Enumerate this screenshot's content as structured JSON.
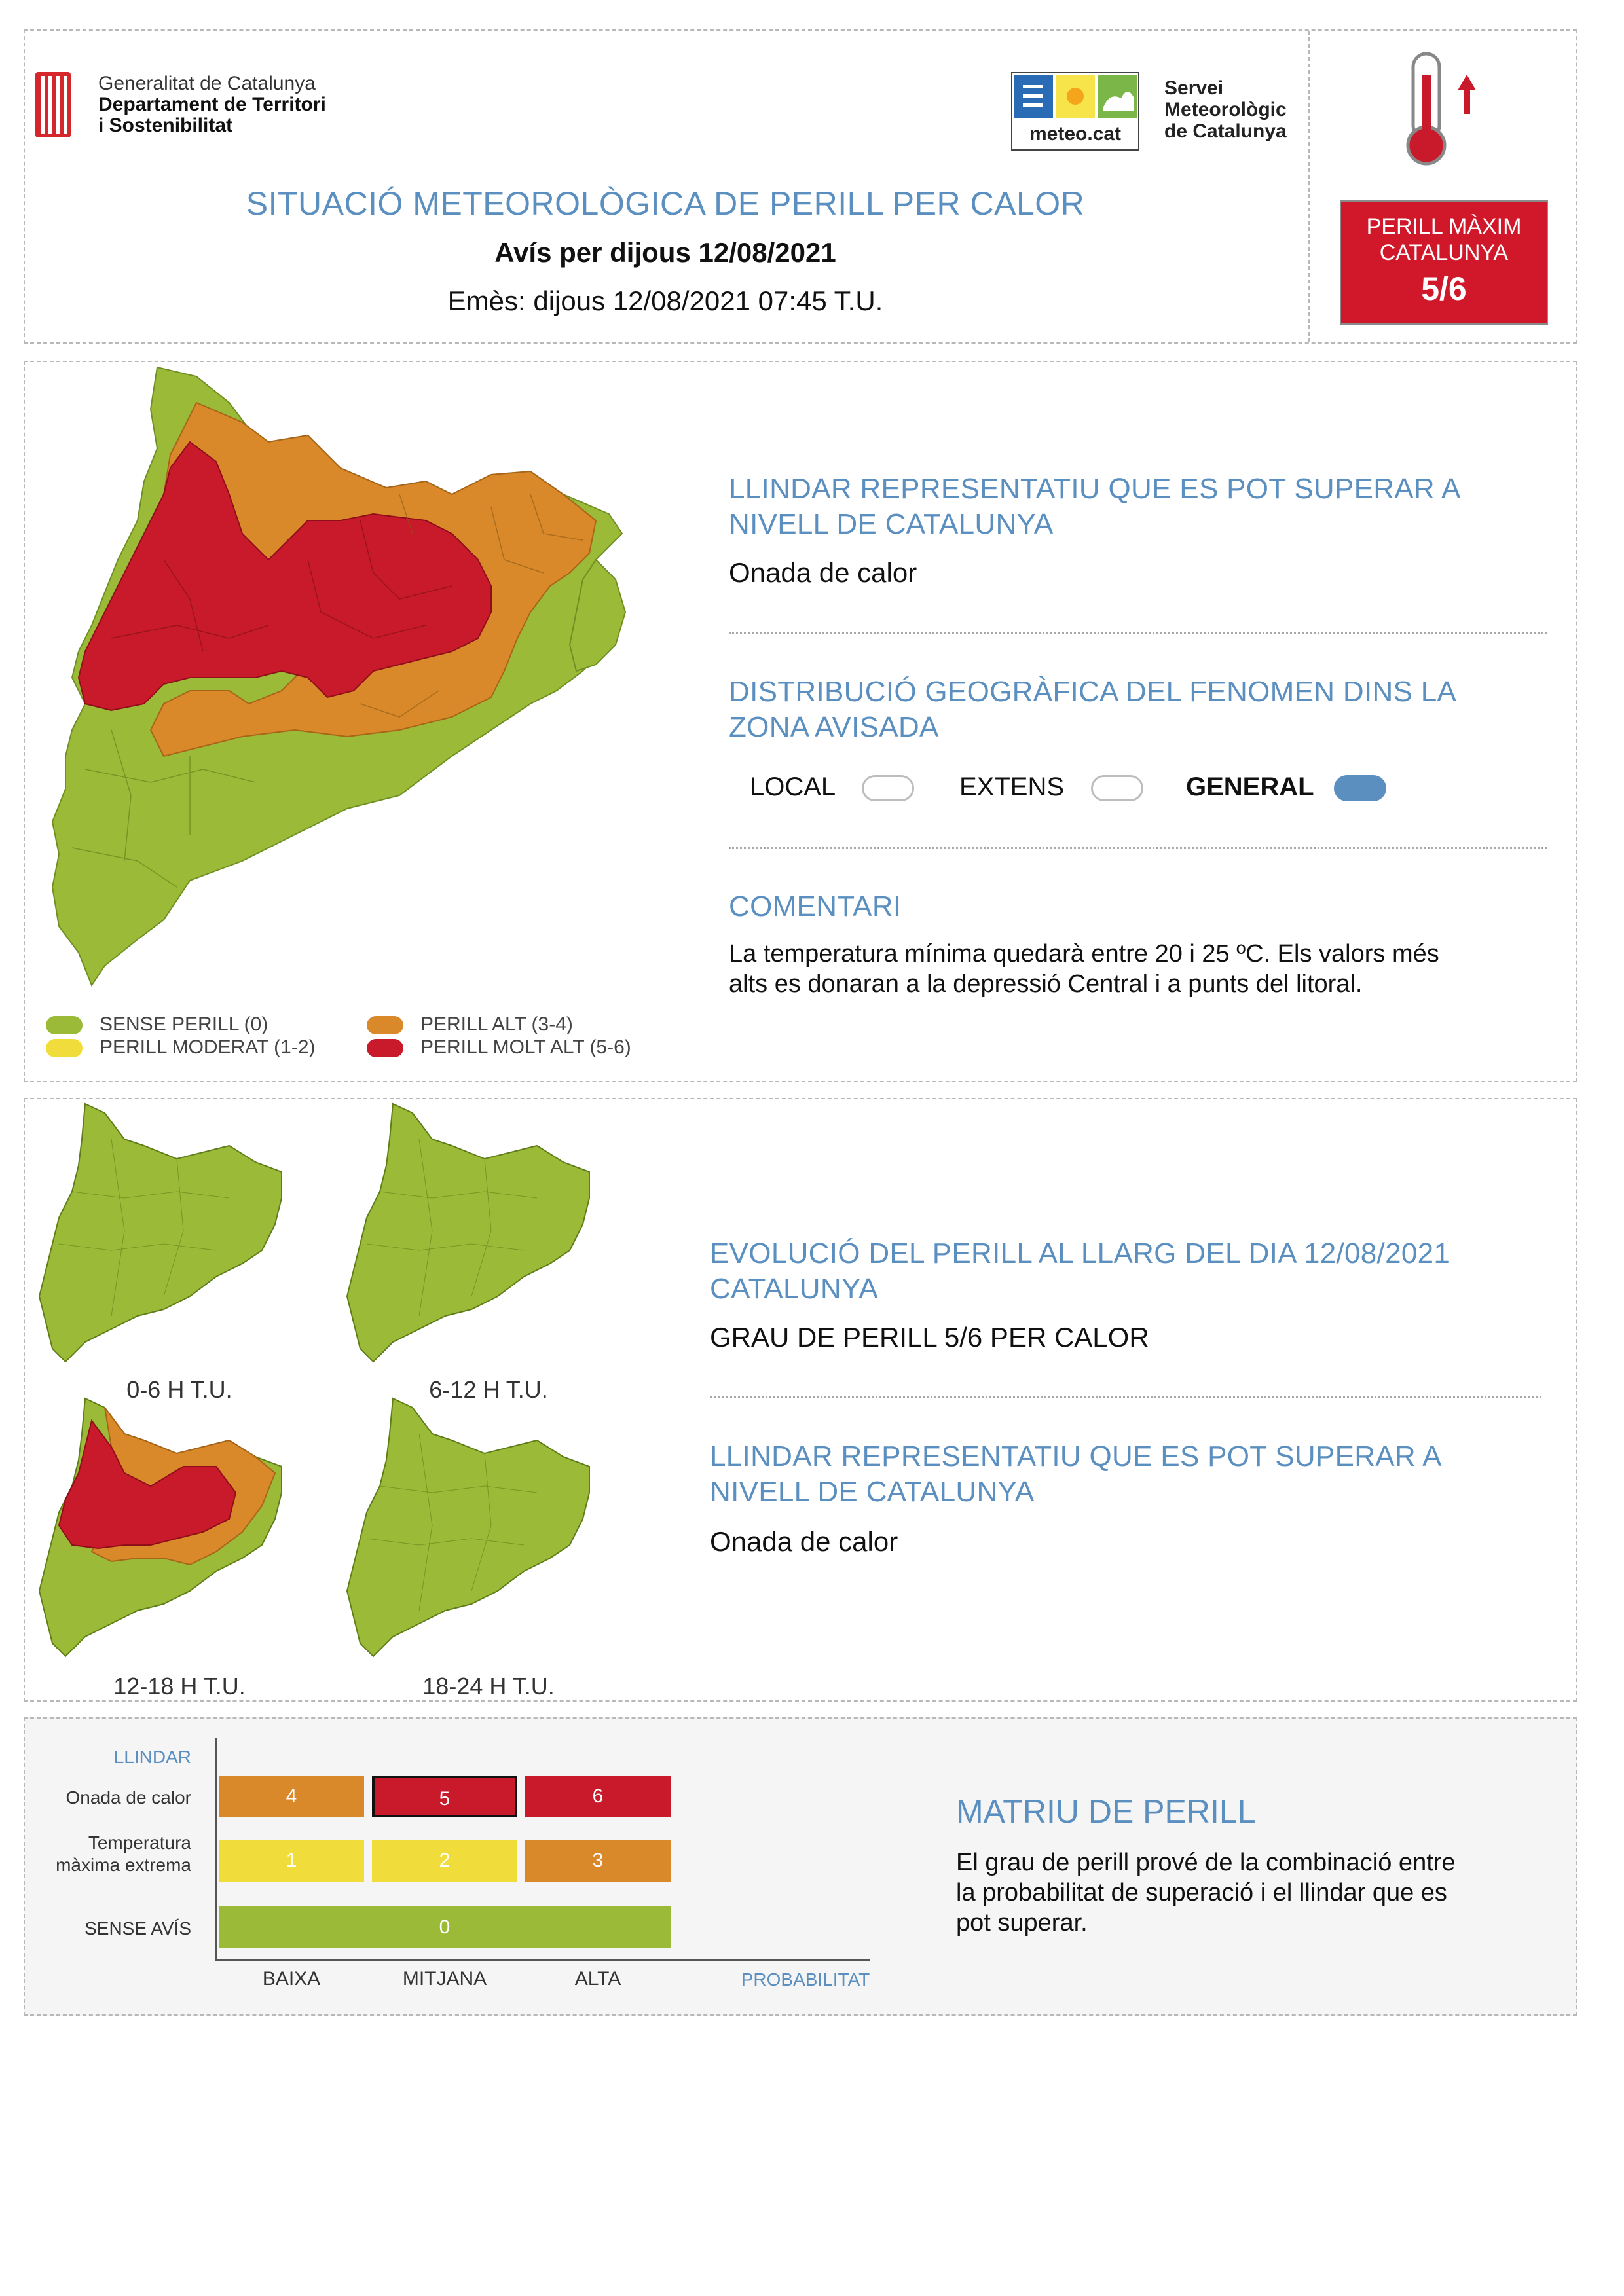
{
  "header": {
    "gen_line1": "Generalitat de Catalunya",
    "gen_line2": "Departament de Territori",
    "gen_line3": "i Sostenibilitat",
    "meteo_logo_text": "meteo.cat",
    "meteo_line1": "Servei",
    "meteo_line2": "Meteorològic",
    "meteo_line3": "de Catalunya",
    "title": "SITUACIÓ METEOROLÒGICA DE PERILL PER CALOR",
    "subtitle": "Avís per dijous 12/08/2021",
    "issued": "Emès: dijous 12/08/2021 07:45 T.U.",
    "max_line1": "PERILL MÀXIM",
    "max_line2": "CATALUNYA",
    "max_value": "5/6"
  },
  "situation": {
    "threshold_title": "LLINDAR REPRESENTATIU QUE ES POT SUPERAR A NIVELL DE CATALUNYA",
    "threshold_value": "Onada de calor",
    "distribution_title": "DISTRIBUCIÓ GEOGRÀFICA DEL FENOMEN DINS LA ZONA AVISADA",
    "distribution_options": [
      "LOCAL",
      "EXTENS",
      "GENERAL"
    ],
    "distribution_selected": "GENERAL",
    "comment_title": "COMENTARI",
    "comment_line1": "La temperatura mínima quedarà entre 20 i 25 ºC. Els valors més",
    "comment_line2": "alts es donaran a la depressió Central i a punts del litoral."
  },
  "legend": {
    "items": [
      {
        "label": "SENSE PERILL (0)",
        "color": "#9aba38"
      },
      {
        "label": "PERILL MODERAT (1-2)",
        "color": "#f0dc3a"
      },
      {
        "label": "PERILL ALT (3-4)",
        "color": "#d9892a"
      },
      {
        "label": "PERILL MOLT ALT (5-6)",
        "color": "#c81a2a"
      }
    ]
  },
  "evolution": {
    "title": "EVOLUCIÓ DEL PERILL AL LLARG DEL DIA 12/08/2021 CATALUNYA",
    "grade": "GRAU DE PERILL 5/6 PER CALOR",
    "threshold_title": "LLINDAR REPRESENTATIU QUE ES POT SUPERAR A NIVELL DE CATALUNYA",
    "threshold_value": "Onada de calor",
    "periods": [
      {
        "label": "0-6 H T.U.",
        "level": "none"
      },
      {
        "label": "6-12 H T.U.",
        "level": "none"
      },
      {
        "label": "12-18 H T.U.",
        "level": "high"
      },
      {
        "label": "18-24 H T.U.",
        "level": "none"
      }
    ]
  },
  "matrix": {
    "y_axis_title": "LLINDAR",
    "rows": [
      {
        "label": "Onada de calor",
        "values": [
          "4",
          "5",
          "6"
        ],
        "colors": [
          "#d9892a",
          "#c81a2a",
          "#c81a2a"
        ]
      },
      {
        "label": "Temperatura màxima extrema",
        "values": [
          "1",
          "2",
          "3"
        ],
        "colors": [
          "#f0dc3a",
          "#f0dc3a",
          "#d9892a"
        ]
      },
      {
        "label": "SENSE AVÍS",
        "values": [
          "0"
        ],
        "colors": [
          "#9aba38"
        ]
      }
    ],
    "highlighted": "5",
    "x_labels": [
      "BAIXA",
      "MITJANA",
      "ALTA"
    ],
    "x_axis_title": "PROBABILITAT",
    "title": "MATRIU DE PERILL",
    "desc_line1": "El grau de perill prové de la combinació entre",
    "desc_line2": "la probabilitat de superació i el llindar que es",
    "desc_line3": "pot superar."
  },
  "colors": {
    "accent_blue": "#5b8fc0",
    "danger_red": "#d0182a",
    "green": "#9aba38",
    "yellow": "#f0dc3a",
    "orange": "#d9892a",
    "red": "#c81a2a"
  },
  "icons": [
    "generalitat-logo-icon",
    "meteocat-logo-icon",
    "thermometer-up-icon"
  ]
}
